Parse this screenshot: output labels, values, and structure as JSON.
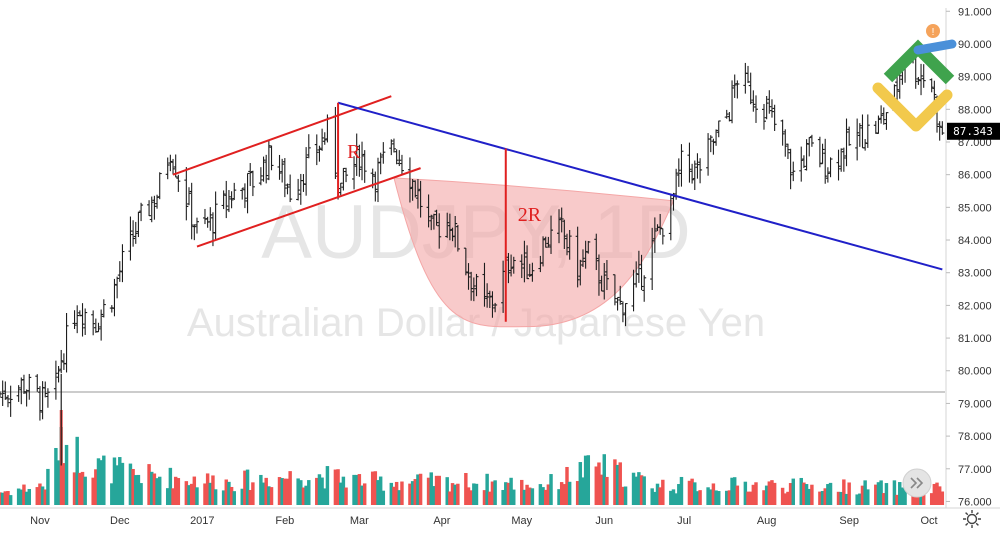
{
  "chart_data": {
    "type": "candlestick",
    "symbol_watermark": "AUDJPY, 1D",
    "name_watermark": "Australian Dollar / Japanese Yen",
    "xlabels": [
      "Nov",
      "Dec",
      "2017",
      "Feb",
      "Mar",
      "Apr",
      "May",
      "Jun",
      "Jul",
      "Aug",
      "Sep",
      "Oct"
    ],
    "ylabels": [
      "76.000",
      "77.000",
      "78.000",
      "79.000",
      "80.000",
      "81.000",
      "82.000",
      "83.000",
      "84.000",
      "85.000",
      "86.000",
      "87.000",
      "88.000",
      "89.000",
      "90.000",
      "91.000"
    ],
    "ylim": [
      75.8,
      91.1
    ],
    "last_price_label": "87.343",
    "last_price": 87.343,
    "reference_line": 79.35,
    "close_path": [
      {
        "date": "2016-10-18",
        "close": 79.3
      },
      {
        "date": "2016-10-26",
        "close": 79.6
      },
      {
        "date": "2016-11-03",
        "close": 79.0
      },
      {
        "date": "2016-11-07",
        "close": 79.5
      },
      {
        "date": "2016-11-09",
        "close": 80.4
      },
      {
        "date": "2016-11-15",
        "close": 82.0
      },
      {
        "date": "2016-11-22",
        "close": 81.5
      },
      {
        "date": "2016-11-28",
        "close": 82.3
      },
      {
        "date": "2016-12-02",
        "close": 83.3
      },
      {
        "date": "2016-12-08",
        "close": 84.5
      },
      {
        "date": "2016-12-15",
        "close": 85.4
      },
      {
        "date": "2016-12-20",
        "close": 86.8
      },
      {
        "date": "2016-12-23",
        "close": 86.0
      },
      {
        "date": "2016-12-30",
        "close": 84.3
      },
      {
        "date": "2017-01-05",
        "close": 84.6
      },
      {
        "date": "2017-01-12",
        "close": 85.4
      },
      {
        "date": "2017-01-20",
        "close": 85.8
      },
      {
        "date": "2017-01-27",
        "close": 86.6
      },
      {
        "date": "2017-02-03",
        "close": 85.5
      },
      {
        "date": "2017-02-10",
        "close": 86.4
      },
      {
        "date": "2017-02-17",
        "close": 87.3
      },
      {
        "date": "2017-02-22",
        "close": 85.6
      },
      {
        "date": "2017-03-01",
        "close": 86.6
      },
      {
        "date": "2017-03-07",
        "close": 86.0
      },
      {
        "date": "2017-03-14",
        "close": 86.9
      },
      {
        "date": "2017-03-21",
        "close": 85.8
      },
      {
        "date": "2017-03-28",
        "close": 84.3
      },
      {
        "date": "2017-04-04",
        "close": 84.6
      },
      {
        "date": "2017-04-11",
        "close": 83.0
      },
      {
        "date": "2017-04-17",
        "close": 82.0
      },
      {
        "date": "2017-04-21",
        "close": 82.2
      },
      {
        "date": "2017-04-27",
        "close": 83.5
      },
      {
        "date": "2017-05-04",
        "close": 83.1
      },
      {
        "date": "2017-05-10",
        "close": 84.0
      },
      {
        "date": "2017-05-16",
        "close": 84.3
      },
      {
        "date": "2017-05-22",
        "close": 83.1
      },
      {
        "date": "2017-05-26",
        "close": 83.6
      },
      {
        "date": "2017-06-01",
        "close": 82.6
      },
      {
        "date": "2017-06-07",
        "close": 82.0
      },
      {
        "date": "2017-06-13",
        "close": 82.6
      },
      {
        "date": "2017-06-20",
        "close": 84.0
      },
      {
        "date": "2017-06-26",
        "close": 85.0
      },
      {
        "date": "2017-06-30",
        "close": 86.3
      },
      {
        "date": "2017-07-06",
        "close": 86.1
      },
      {
        "date": "2017-07-12",
        "close": 87.0
      },
      {
        "date": "2017-07-18",
        "close": 88.0
      },
      {
        "date": "2017-07-21",
        "close": 89.0
      },
      {
        "date": "2017-07-26",
        "close": 88.5
      },
      {
        "date": "2017-08-01",
        "close": 88.0
      },
      {
        "date": "2017-08-07",
        "close": 87.0
      },
      {
        "date": "2017-08-11",
        "close": 86.0
      },
      {
        "date": "2017-08-17",
        "close": 86.8
      },
      {
        "date": "2017-08-24",
        "close": 86.3
      },
      {
        "date": "2017-08-30",
        "close": 86.8
      },
      {
        "date": "2017-09-05",
        "close": 87.2
      },
      {
        "date": "2017-09-12",
        "close": 87.5
      },
      {
        "date": "2017-09-18",
        "close": 88.4
      },
      {
        "date": "2017-09-22",
        "close": 89.8
      },
      {
        "date": "2017-09-26",
        "close": 89.2
      },
      {
        "date": "2017-10-02",
        "close": 88.8
      },
      {
        "date": "2017-10-05",
        "close": 87.3
      }
    ],
    "volume_profile": [
      {
        "date": "2016-10-18",
        "level": 0.2
      },
      {
        "date": "2016-11-03",
        "level": 0.3
      },
      {
        "date": "2016-11-09",
        "level": 1.0
      },
      {
        "date": "2016-11-20",
        "level": 0.6
      },
      {
        "date": "2016-12-10",
        "level": 0.45
      },
      {
        "date": "2017-01-10",
        "level": 0.35
      },
      {
        "date": "2017-02-10",
        "level": 0.45
      },
      {
        "date": "2017-03-10",
        "level": 0.35
      },
      {
        "date": "2017-04-10",
        "level": 0.35
      },
      {
        "date": "2017-05-10",
        "level": 0.3
      },
      {
        "date": "2017-05-29",
        "level": 0.6
      },
      {
        "date": "2017-06-20",
        "level": 0.3
      },
      {
        "date": "2017-08-01",
        "level": 0.3
      },
      {
        "date": "2017-10-05",
        "level": 0.25
      }
    ],
    "annotations": {
      "trendline": {
        "from": {
          "date": "2017-02-21",
          "value": 88.2
        },
        "to": {
          "date": "2017-10-06",
          "value": 83.1
        }
      },
      "channel_upper": {
        "from": {
          "date": "2016-12-21",
          "value": 86.0
        },
        "to": {
          "date": "2017-03-13",
          "value": 88.4
        }
      },
      "channel_lower": {
        "from": {
          "date": "2016-12-30",
          "value": 83.8
        },
        "to": {
          "date": "2017-03-24",
          "value": 86.2
        }
      },
      "r_measure": {
        "label": "R",
        "date": "2017-02-21",
        "from": 85.3,
        "to": 88.2
      },
      "two_r_measure": {
        "label": "2R",
        "date": "2017-04-25",
        "from": 81.5,
        "to": 86.8
      },
      "cup_shape": {
        "start": {
          "date": "2017-03-14",
          "value": 85.9
        },
        "bottom": {
          "date": "2017-05-03",
          "value": 81.35
        },
        "end": {
          "date": "2017-06-27",
          "value": 85.2
        }
      }
    },
    "colors": {
      "up": "#26a69a",
      "down": "#ef5350",
      "bars": "#1e1e1e",
      "trendline": "#2020c8",
      "annotation": "#e02020",
      "cup_fill": "#f4a6a6"
    }
  },
  "ui": {
    "scroll_icon": "double-chevron-right-icon",
    "settings_icon": "gear-icon",
    "logo_icon": "logo-mark-icon",
    "alert_badge": "!"
  }
}
